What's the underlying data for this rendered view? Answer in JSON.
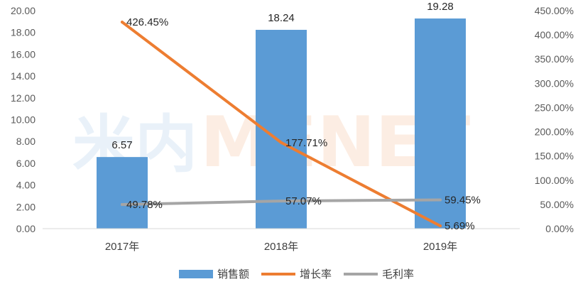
{
  "chart_data": {
    "type": "bar+line",
    "categories": [
      "2017年",
      "2018年",
      "2019年"
    ],
    "series": [
      {
        "name": "销售额",
        "type": "bar",
        "axis": "left",
        "values": [
          6.57,
          18.24,
          19.28
        ],
        "labels": [
          "6.57",
          "18.24",
          "19.28"
        ],
        "color": "#5b9bd5"
      },
      {
        "name": "增长率",
        "type": "line",
        "axis": "right",
        "values": [
          426.45,
          177.71,
          5.69
        ],
        "labels": [
          "426.45%",
          "177.71%",
          "5.69%"
        ],
        "color": "#ed7d31"
      },
      {
        "name": "毛利率",
        "type": "line",
        "axis": "right",
        "values": [
          49.78,
          57.07,
          59.45
        ],
        "labels": [
          "49.78%",
          "57.07%",
          "59.45%"
        ],
        "color": "#a5a5a5"
      }
    ],
    "left_axis": {
      "min": 0,
      "max": 20,
      "step": 2,
      "ticks": [
        "0.00",
        "2.00",
        "4.00",
        "6.00",
        "8.00",
        "10.00",
        "12.00",
        "14.00",
        "16.00",
        "18.00",
        "20.00"
      ]
    },
    "right_axis": {
      "min": 0,
      "max": 450,
      "step": 50,
      "ticks": [
        "0.00%",
        "50.00%",
        "100.00%",
        "150.00%",
        "200.00%",
        "250.00%",
        "300.00%",
        "350.00%",
        "400.00%",
        "450.00%"
      ]
    },
    "legend_position": "bottom",
    "grid": false,
    "watermark": {
      "cn": "米内",
      "en": "MENET"
    }
  }
}
